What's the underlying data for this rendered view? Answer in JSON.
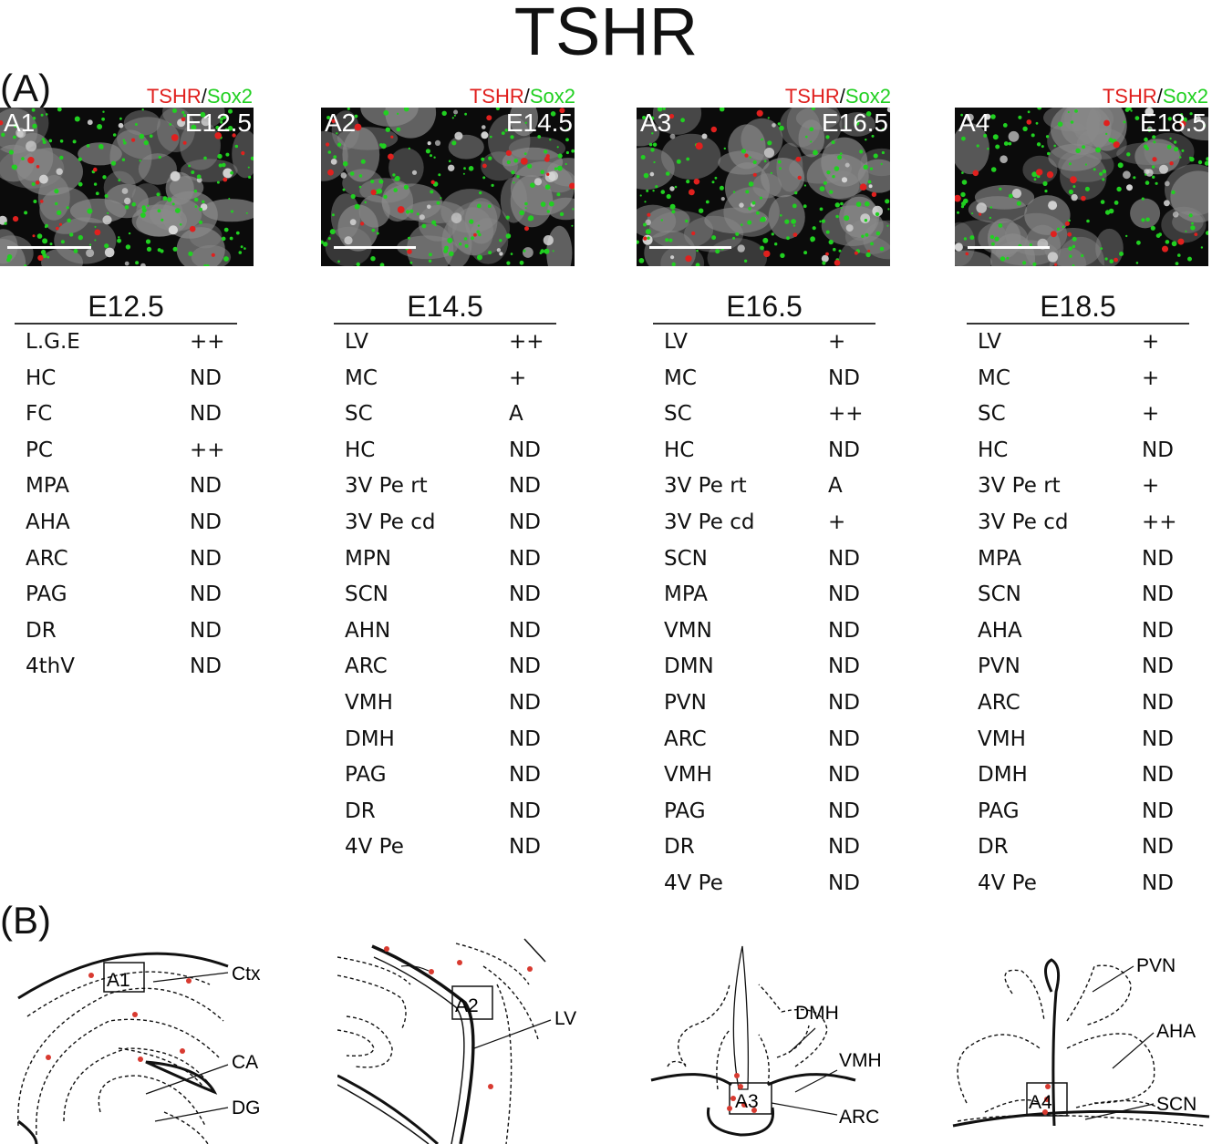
{
  "title": "TSHR",
  "panels": {
    "a_label": "(A)",
    "b_label": "(B)"
  },
  "micrographs": [
    {
      "marker_primary": "TSHR",
      "separator": "/",
      "marker_secondary": "Sox2",
      "id": "A1",
      "stage": "E12.5"
    },
    {
      "marker_primary": "TSHR",
      "separator": "/",
      "marker_secondary": "Sox2",
      "id": "A2",
      "stage": "E14.5"
    },
    {
      "marker_primary": "TSHR",
      "separator": "/",
      "marker_secondary": "Sox2",
      "id": "A3",
      "stage": "E16.5"
    },
    {
      "marker_primary": "TSHR",
      "separator": "/",
      "marker_secondary": "Sox2",
      "id": "A4",
      "stage": "E18.5"
    }
  ],
  "colors": {
    "tshr": "#e0201e",
    "sox2": "#21d021",
    "nuclei": "#d8d8d8",
    "dots": "#d83a30"
  },
  "tables": [
    {
      "stage": "E12.5",
      "rows": [
        {
          "region": "L.G.E",
          "level": "++"
        },
        {
          "region": "HC",
          "level": "ND"
        },
        {
          "region": "FC",
          "level": "ND"
        },
        {
          "region": "PC",
          "level": "++"
        },
        {
          "region": "MPA",
          "level": "ND"
        },
        {
          "region": "AHA",
          "level": "ND"
        },
        {
          "region": "ARC",
          "level": "ND"
        },
        {
          "region": "PAG",
          "level": "ND"
        },
        {
          "region": "DR",
          "level": "ND"
        },
        {
          "region": "4thV",
          "level": "ND"
        }
      ]
    },
    {
      "stage": "E14.5",
      "rows": [
        {
          "region": "LV",
          "level": "++"
        },
        {
          "region": "MC",
          "level": "+"
        },
        {
          "region": "SC",
          "level": "A"
        },
        {
          "region": "HC",
          "level": "ND"
        },
        {
          "region": "3V Pe rt",
          "level": "ND"
        },
        {
          "region": "3V Pe cd",
          "level": "ND"
        },
        {
          "region": "MPN",
          "level": "ND"
        },
        {
          "region": "SCN",
          "level": "ND"
        },
        {
          "region": "AHN",
          "level": "ND"
        },
        {
          "region": "ARC",
          "level": "ND"
        },
        {
          "region": "VMH",
          "level": "ND"
        },
        {
          "region": "DMH",
          "level": "ND"
        },
        {
          "region": "PAG",
          "level": "ND"
        },
        {
          "region": "DR",
          "level": "ND"
        },
        {
          "region": "4V Pe",
          "level": "ND"
        }
      ]
    },
    {
      "stage": "E16.5",
      "rows": [
        {
          "region": "LV",
          "level": "+"
        },
        {
          "region": "MC",
          "level": "ND"
        },
        {
          "region": "SC",
          "level": "++"
        },
        {
          "region": "HC",
          "level": "ND"
        },
        {
          "region": "3V Pe rt",
          "level": "A"
        },
        {
          "region": "3V Pe cd",
          "level": "+"
        },
        {
          "region": "SCN",
          "level": "ND"
        },
        {
          "region": "MPA",
          "level": "ND"
        },
        {
          "region": "VMN",
          "level": "ND"
        },
        {
          "region": "DMN",
          "level": "ND"
        },
        {
          "region": "PVN",
          "level": "ND"
        },
        {
          "region": "ARC",
          "level": "ND"
        },
        {
          "region": "VMH",
          "level": "ND"
        },
        {
          "region": "PAG",
          "level": "ND"
        },
        {
          "region": "DR",
          "level": "ND"
        },
        {
          "region": "4V Pe",
          "level": "ND"
        }
      ]
    },
    {
      "stage": "E18.5",
      "rows": [
        {
          "region": "LV",
          "level": "+"
        },
        {
          "region": "MC",
          "level": "+"
        },
        {
          "region": "SC",
          "level": "+"
        },
        {
          "region": "HC",
          "level": "ND"
        },
        {
          "region": "3V Pe rt",
          "level": "+"
        },
        {
          "region": "3V Pe cd",
          "level": "++"
        },
        {
          "region": "MPA",
          "level": "ND"
        },
        {
          "region": "SCN",
          "level": "ND"
        },
        {
          "region": "AHA",
          "level": "ND"
        },
        {
          "region": "PVN",
          "level": "ND"
        },
        {
          "region": "ARC",
          "level": "ND"
        },
        {
          "region": "VMH",
          "level": "ND"
        },
        {
          "region": "DMH",
          "level": "ND"
        },
        {
          "region": "PAG",
          "level": "ND"
        },
        {
          "region": "DR",
          "level": "ND"
        },
        {
          "region": "4V Pe",
          "level": "ND"
        }
      ]
    }
  ],
  "diagrams": [
    {
      "box": "A1",
      "labels": [
        "Ctx",
        "CA",
        "DG"
      ]
    },
    {
      "box": "A2",
      "labels": [
        "LV"
      ]
    },
    {
      "box": "A3",
      "labels": [
        "DMH",
        "VMH",
        "ARC"
      ]
    },
    {
      "box": "A4",
      "labels": [
        "PVN",
        "AHA",
        "SCN"
      ]
    }
  ]
}
